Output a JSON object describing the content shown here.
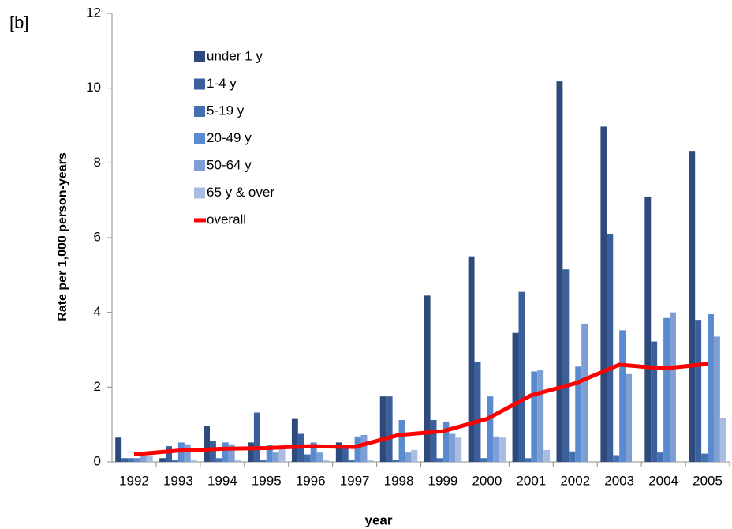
{
  "chart_data": {
    "type": "bar",
    "title": "[b]",
    "x_label": "year",
    "y_label": "Rate per 1,000 person-years",
    "categories": [
      "1992",
      "1993",
      "1994",
      "1995",
      "1996",
      "1997",
      "1998",
      "1999",
      "2000",
      "2001",
      "2002",
      "2003",
      "2004",
      "2005"
    ],
    "ylim": [
      0,
      12
    ],
    "yticks": [
      0,
      2,
      4,
      6,
      8,
      10,
      12
    ],
    "grid": false,
    "legend": "upper left",
    "series": [
      {
        "name": "under 1 y",
        "color": "#2e4a7d",
        "values": [
          0.65,
          0.1,
          0.95,
          0.52,
          1.15,
          0.52,
          1.75,
          4.45,
          5.5,
          3.45,
          10.18,
          8.97,
          7.1,
          8.32
        ]
      },
      {
        "name": "1-4 y",
        "color": "#3a5f9a",
        "values": [
          0.1,
          0.42,
          0.57,
          1.32,
          0.75,
          0.42,
          1.75,
          1.12,
          2.68,
          4.55,
          5.15,
          6.1,
          3.22,
          3.8
        ]
      },
      {
        "name": "5-19 y",
        "color": "#4470b0",
        "values": [
          0.1,
          0.05,
          0.1,
          0.05,
          0.2,
          0.05,
          0.05,
          0.1,
          0.1,
          0.1,
          0.28,
          0.18,
          0.25,
          0.22
        ]
      },
      {
        "name": "20-49 y",
        "color": "#5a8ad0",
        "values": [
          0.1,
          0.52,
          0.52,
          0.45,
          0.52,
          0.68,
          1.12,
          1.08,
          1.75,
          2.42,
          2.55,
          3.52,
          3.85,
          3.95
        ]
      },
      {
        "name": "50-64 y",
        "color": "#7f9fd4",
        "values": [
          0.15,
          0.47,
          0.47,
          0.25,
          0.25,
          0.72,
          0.25,
          0.75,
          0.68,
          2.45,
          3.7,
          2.35,
          4.0,
          3.35
        ]
      },
      {
        "name": "65 y & over",
        "color": "#a9bde3",
        "values": [
          0.15,
          0.05,
          0.05,
          0.38,
          0.05,
          0.05,
          0.32,
          0.65,
          0.65,
          0.32,
          0,
          0,
          0,
          1.18
        ]
      },
      {
        "name": "overall",
        "color": "#ff0000",
        "type": "line",
        "values": [
          0.2,
          0.3,
          0.35,
          0.37,
          0.42,
          0.4,
          0.72,
          0.82,
          1.15,
          1.78,
          2.1,
          2.6,
          2.5,
          2.62
        ]
      }
    ]
  }
}
